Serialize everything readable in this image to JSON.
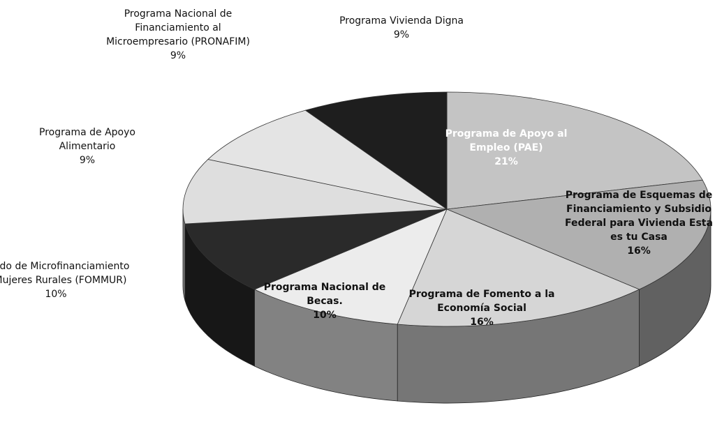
{
  "chart_data": {
    "type": "pie",
    "categories": [
      "Programa de Apoyo al Empleo (PAE)",
      "Programa de Esquemas de Financiamiento y Subsidio Federal para Vivienda Esta es tu Casa",
      "Programa de Fomento a la Economía Social",
      "Programa Nacional de Becas.",
      "Fondo de Microfinanciamiento a Mujeres Rurales (FOMMUR)",
      "Programa de Apoyo Alimentario",
      "Programa Nacional de Financiamiento al Microempresario (PRONAFIM)",
      "Programa Vivienda Digna"
    ],
    "values": [
      21,
      16,
      16,
      10,
      10,
      9,
      9,
      9
    ],
    "value_labels": [
      "21%",
      "16%",
      "16%",
      "10%",
      "10%",
      "9%",
      "9%",
      "9%"
    ],
    "colors": [
      "#c4c4c4",
      "#b0b0b0",
      "#d6d6d6",
      "#ececec",
      "#2a2a2a",
      "#dedede",
      "#e4e4e4",
      "#1e1e1e"
    ]
  }
}
